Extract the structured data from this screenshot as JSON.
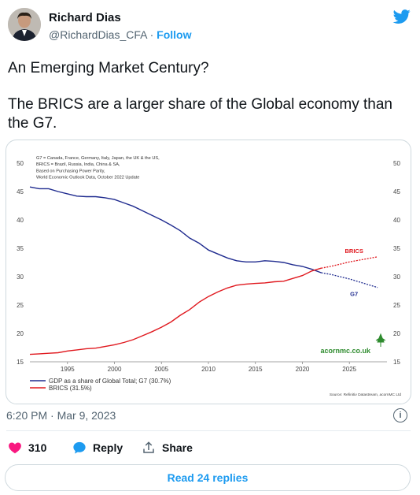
{
  "author": {
    "name": "Richard Dias",
    "handle": "@RichardDias_CFA",
    "separator": "·",
    "follow_label": "Follow"
  },
  "tweet": {
    "line1": "An Emerging Market Century?",
    "line2": "The BRICS are a larger share of the Global economy than",
    "line3": "the G7."
  },
  "timestamp": "6:20 PM · Mar 9, 2023",
  "info_label": "i",
  "actions": {
    "likes_count": "310",
    "reply_label": "Reply",
    "share_label": "Share"
  },
  "read_replies_label": "Read 24 replies",
  "colors": {
    "accent": "#1d9bf0",
    "like": "#f91880",
    "g7_line": "#1f2b8f",
    "brics_line": "#e0191f",
    "watermark": "#2e8b2e"
  },
  "chart_data": {
    "type": "line",
    "note_lines": [
      "G7 = Canada, France, Germany, Italy, Japan, the UK & the US,",
      "BRICS = Brazil, Russia, India, China & SA,",
      "Based on Purchasing Power Parity,",
      "World Economic Outlook Data, October 2022 Update"
    ],
    "x_ticks": [
      1995,
      2000,
      2005,
      2010,
      2015,
      2020,
      2025
    ],
    "y_ticks": [
      15,
      20,
      25,
      30,
      35,
      40,
      45,
      50
    ],
    "xlim": [
      1991,
      2029
    ],
    "ylim": [
      15,
      50
    ],
    "series": [
      {
        "name": "GDP as a share of Global Total; G7 (30.7%)",
        "label": "G7",
        "x": [
          1991,
          1992,
          1993,
          1994,
          1995,
          1996,
          1997,
          1998,
          1999,
          2000,
          2001,
          2002,
          2003,
          2004,
          2005,
          2006,
          2007,
          2008,
          2009,
          2010,
          2011,
          2012,
          2013,
          2014,
          2015,
          2016,
          2017,
          2018,
          2019,
          2020,
          2021,
          2022
        ],
        "y": [
          45.8,
          45.5,
          45.5,
          45.0,
          44.6,
          44.2,
          44.1,
          44.1,
          43.9,
          43.6,
          43.0,
          42.4,
          41.6,
          40.8,
          40.0,
          39.1,
          38.1,
          36.8,
          35.9,
          34.7,
          34.0,
          33.3,
          32.8,
          32.6,
          32.6,
          32.8,
          32.7,
          32.5,
          32.1,
          31.8,
          31.3,
          30.7
        ],
        "projection_x": [
          2022,
          2023,
          2024,
          2025,
          2026,
          2027,
          2028
        ],
        "projection_y": [
          30.7,
          30.4,
          30.0,
          29.6,
          29.1,
          28.6,
          28.1
        ]
      },
      {
        "name": "BRICS (31.5%)",
        "label": "BRICS",
        "x": [
          1991,
          1992,
          1993,
          1994,
          1995,
          1996,
          1997,
          1998,
          1999,
          2000,
          2001,
          2002,
          2003,
          2004,
          2005,
          2006,
          2007,
          2008,
          2009,
          2010,
          2011,
          2012,
          2013,
          2014,
          2015,
          2016,
          2017,
          2018,
          2019,
          2020,
          2021,
          2022
        ],
        "y": [
          16.3,
          16.4,
          16.5,
          16.6,
          16.9,
          17.1,
          17.3,
          17.4,
          17.7,
          18.0,
          18.4,
          18.9,
          19.6,
          20.3,
          21.1,
          22.0,
          23.2,
          24.2,
          25.5,
          26.5,
          27.3,
          28.0,
          28.5,
          28.7,
          28.8,
          28.9,
          29.1,
          29.2,
          29.7,
          30.2,
          31.0,
          31.5
        ],
        "projection_x": [
          2022,
          2023,
          2024,
          2025,
          2026,
          2027,
          2028
        ],
        "projection_y": [
          31.5,
          31.8,
          32.2,
          32.6,
          32.9,
          33.2,
          33.5
        ]
      }
    ],
    "watermark": "acornmc.co.uk",
    "source": "Source: Refinitiv Datastream, acornMC Ltd"
  }
}
